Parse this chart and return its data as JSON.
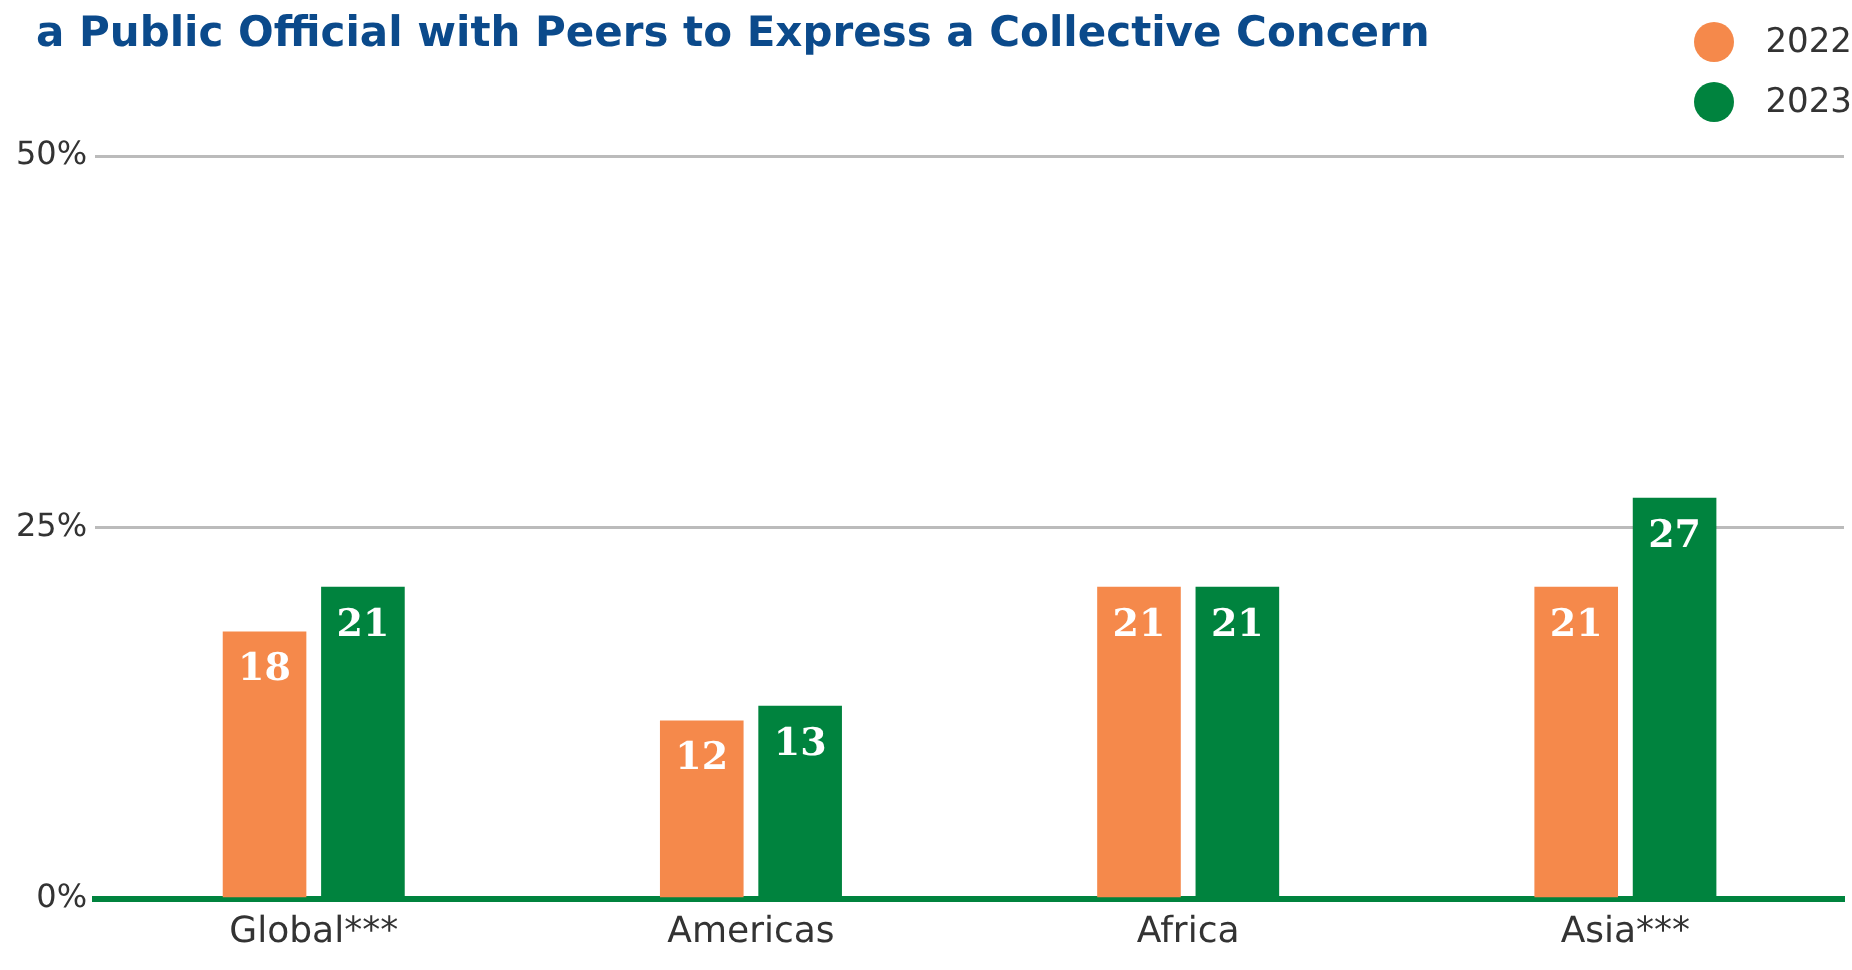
{
  "chart_data": {
    "type": "bar",
    "title": "a Public Official with Peers to Express a Collective Concern",
    "categories": [
      "Global***",
      "Americas",
      "Africa",
      "Asia***"
    ],
    "series": [
      {
        "name": "2022",
        "color": "#f5894b",
        "values": [
          18,
          12,
          21,
          21
        ]
      },
      {
        "name": "2023",
        "color": "#00833e",
        "values": [
          21,
          13,
          21,
          27
        ]
      }
    ],
    "ylim": [
      0,
      50
    ],
    "yticks": [
      {
        "value": 0,
        "label": "0%"
      },
      {
        "value": 25,
        "label": "25%"
      },
      {
        "value": 50,
        "label": "50%"
      }
    ],
    "grid": "y",
    "legend": "top right",
    "data_labels": true
  }
}
